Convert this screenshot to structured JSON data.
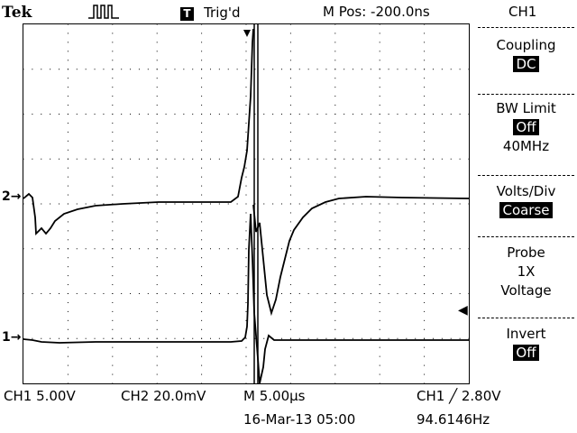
{
  "header": {
    "brand": "Tek",
    "trigger_icon_glyph": "T",
    "trigger_status": "Trig'd",
    "m_pos": "M Pos: -200.0ns",
    "channel": "CH1"
  },
  "menu": {
    "coupling": {
      "title": "Coupling",
      "value": "DC"
    },
    "bw_limit": {
      "title": "BW Limit",
      "value": "Off",
      "freq": "40MHz"
    },
    "volts_div": {
      "title": "Volts/Div",
      "value": "Coarse"
    },
    "probe": {
      "title": "Probe",
      "factor": "1X",
      "type": "Voltage"
    },
    "invert": {
      "title": "Invert",
      "value": "Off"
    }
  },
  "markers": {
    "ch2": "2",
    "ch1": "1"
  },
  "footer": {
    "ch1_scale": "CH1  5.00V",
    "ch2_scale": "CH2  20.0mV",
    "m_scale": "M 5.00µs",
    "trigger": "CH1 ╱ 2.80V",
    "datetime": "16-Mar-13 05:00",
    "frequency": "94.6146Hz"
  },
  "icons": {
    "acq": "acquisition-pulse-icon",
    "trigger_pos": "trigger-position-icon",
    "trigger_level": "trigger-level-arrow-icon",
    "slope": "rising-edge-icon"
  }
}
